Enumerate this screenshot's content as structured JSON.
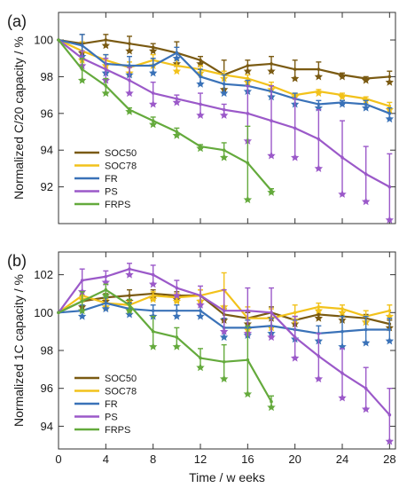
{
  "figure": {
    "xlabel": "Time / w eeks"
  },
  "colors": {
    "SOC50": "#7a5a12",
    "SOC78": "#f2c21b",
    "FR": "#3a72b8",
    "PS": "#9b59c9",
    "FRPS": "#64aa3c"
  },
  "chart_data": [
    {
      "type": "line",
      "panel_label": "(a)",
      "ylabel": "Normalized C/20 capacity / %",
      "xlabel": "",
      "xlim": [
        0,
        28.5
      ],
      "ylim": [
        90,
        101.5
      ],
      "xticks": [
        0,
        4,
        8,
        12,
        16,
        20,
        24,
        28
      ],
      "yticks": [
        92,
        94,
        96,
        98,
        100
      ],
      "x_tick_labels_shown": false,
      "grid": false,
      "legend_position": "lower-left",
      "series": [
        {
          "name": "SOC50",
          "x": [
            0,
            2,
            4,
            6,
            8,
            10,
            12,
            14,
            16,
            18,
            20,
            22,
            24,
            26,
            28
          ],
          "y": [
            100,
            99.8,
            100,
            99.8,
            99.6,
            99.3,
            98.9,
            98.1,
            98.6,
            98.7,
            98.4,
            98.4,
            98.1,
            97.9,
            98
          ],
          "err": [
            0,
            0.5,
            0.3,
            0.4,
            0.2,
            0.6,
            0.2,
            0.8,
            0.3,
            0.4,
            0.5,
            0.4,
            0.1,
            0.1,
            0.3
          ]
        },
        {
          "name": "SOC78",
          "x": [
            0,
            2,
            4,
            6,
            8,
            10,
            12,
            14,
            16,
            18,
            20,
            22,
            24,
            26,
            28
          ],
          "y": [
            100,
            99.4,
            98.9,
            98.5,
            98.9,
            98.6,
            98.4,
            98.1,
            97.9,
            97.5,
            97.0,
            97.2,
            97.0,
            96.8,
            96.4
          ],
          "err": [
            0,
            0.5,
            0.3,
            0.3,
            0.3,
            0.3,
            0.2,
            0.2,
            0.2,
            0.2,
            0.1,
            0.1,
            0.1,
            0.1,
            0.2
          ]
        },
        {
          "name": "FR",
          "x": [
            0,
            2,
            4,
            6,
            8,
            10,
            12,
            14,
            16,
            18,
            20,
            22,
            24,
            26,
            28
          ],
          "y": [
            100,
            99.7,
            98.7,
            98.6,
            98.6,
            99.3,
            98.0,
            97.6,
            97.5,
            97.2,
            96.8,
            96.5,
            96.6,
            96.5,
            96.0
          ],
          "err": [
            0,
            0.6,
            0.5,
            0.5,
            0.4,
            0.3,
            0.4,
            0.5,
            0.3,
            0.3,
            0.3,
            0.2,
            0.1,
            0.2,
            0.3
          ]
        },
        {
          "name": "PS",
          "x": [
            0,
            2,
            4,
            6,
            8,
            10,
            12,
            14,
            16,
            18,
            20,
            22,
            24,
            26,
            28
          ],
          "y": [
            100,
            99.0,
            98.4,
            97.8,
            97.1,
            96.8,
            96.5,
            96.2,
            96.0,
            95.6,
            95.2,
            94.6,
            93.6,
            92.7,
            92.0
          ],
          "err": [
            0,
            0.4,
            0.6,
            0.7,
            0.6,
            0.2,
            0.6,
            0.3,
            1.5,
            1.9,
            1.6,
            1.6,
            2.0,
            1.5,
            1.8
          ]
        },
        {
          "name": "FRPS",
          "x": [
            0,
            2,
            4,
            6,
            8,
            10,
            12,
            14,
            16,
            18
          ],
          "y": [
            100,
            98.4,
            97.5,
            96.2,
            95.6,
            95.0,
            94.2,
            94.0,
            93.3,
            91.8
          ],
          "err": [
            0,
            0.6,
            0.4,
            0.1,
            0.2,
            0.2,
            0.1,
            0.4,
            2.0,
            0.1
          ]
        }
      ]
    },
    {
      "type": "line",
      "panel_label": "(b)",
      "ylabel": "Normalized 1C capacity / %",
      "xlabel": "Time / w eeks",
      "xlim": [
        0,
        28.5
      ],
      "ylim": [
        92.8,
        103.2
      ],
      "xticks": [
        0,
        4,
        8,
        12,
        16,
        20,
        24,
        28
      ],
      "yticks": [
        94,
        96,
        98,
        100,
        102
      ],
      "x_tick_labels_shown": true,
      "grid": false,
      "legend_position": "lower-left",
      "series": [
        {
          "name": "SOC50",
          "x": [
            0,
            2,
            4,
            6,
            8,
            10,
            12,
            14,
            16,
            18,
            20,
            22,
            24,
            26,
            28
          ],
          "y": [
            100,
            100.6,
            100.8,
            100.9,
            101.0,
            100.9,
            100.9,
            99.9,
            99.7,
            100.0,
            99.6,
            99.9,
            99.8,
            99.7,
            99.4
          ],
          "err": [
            0,
            0.3,
            0.2,
            0.3,
            0.2,
            0.2,
            0.3,
            0.3,
            0.3,
            0.3,
            0.2,
            0.2,
            0.2,
            0.2,
            0.2
          ]
        },
        {
          "name": "SOC78",
          "x": [
            0,
            2,
            4,
            6,
            8,
            10,
            12,
            14,
            16,
            18,
            20,
            22,
            24,
            26,
            28
          ],
          "y": [
            100,
            100.9,
            100.5,
            100.4,
            100.9,
            100.8,
            100.9,
            101.2,
            99.7,
            99.7,
            100.0,
            100.3,
            100.2,
            99.8,
            100.1
          ],
          "err": [
            0,
            0.2,
            0.2,
            0.2,
            0.2,
            0.2,
            0.3,
            0.9,
            0.6,
            0.5,
            0.4,
            0.2,
            0.2,
            0.3,
            0.3
          ]
        },
        {
          "name": "FR",
          "x": [
            0,
            2,
            4,
            6,
            8,
            10,
            12,
            14,
            16,
            18,
            20,
            22,
            24,
            26,
            28
          ],
          "y": [
            100,
            100.1,
            100.5,
            100.2,
            100.1,
            100.1,
            100.1,
            99.2,
            99.2,
            99.3,
            99.1,
            98.9,
            99.0,
            99.1,
            99.1
          ],
          "err": [
            0,
            0.3,
            0.3,
            0.3,
            0.3,
            0.3,
            0.3,
            0.5,
            0.4,
            0.4,
            0.5,
            0.4,
            0.8,
            0.7,
            0.6
          ]
        },
        {
          "name": "PS",
          "x": [
            0,
            2,
            4,
            6,
            8,
            10,
            12,
            14,
            16,
            18,
            20,
            22,
            24,
            26,
            28
          ],
          "y": [
            100,
            101.7,
            101.9,
            102.3,
            102.0,
            101.3,
            100.9,
            100.1,
            100.1,
            100.0,
            98.7,
            97.7,
            96.8,
            96.0,
            94.6
          ],
          "err": [
            0,
            0.6,
            0.3,
            0.3,
            0.5,
            0.4,
            0.5,
            1.1,
            1.2,
            1.3,
            1.1,
            1.2,
            1.3,
            1.1,
            1.4
          ]
        },
        {
          "name": "FRPS",
          "x": [
            0,
            2,
            4,
            6,
            8,
            10,
            12,
            14,
            16,
            18
          ],
          "y": [
            100,
            100.6,
            101.2,
            100.4,
            99.0,
            98.7,
            97.6,
            97.4,
            97.5,
            95.3
          ],
          "err": [
            0,
            0.5,
            0.3,
            0.3,
            0.8,
            0.5,
            0.5,
            0.9,
            1.8,
            0.3
          ]
        }
      ]
    }
  ]
}
